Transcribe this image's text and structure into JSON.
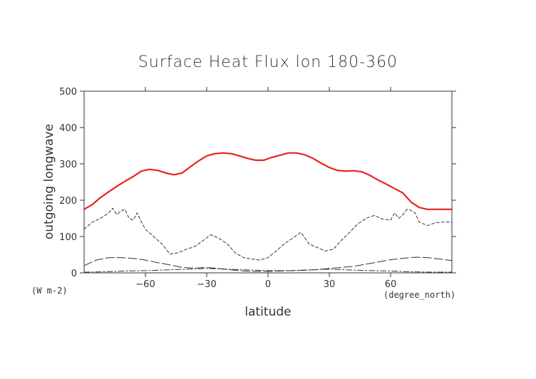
{
  "chart_data": {
    "type": "line",
    "title": "Surface Heat Flux lon 180-360",
    "xlabel": "latitude",
    "ylabel": "outgoing longwave",
    "x_unit": "(degree_north)",
    "y_unit": "(W m-2)",
    "xlim": [
      -90,
      90
    ],
    "ylim": [
      0,
      500
    ],
    "x_ticks": [
      -60,
      -30,
      0,
      30,
      60
    ],
    "y_ticks": [
      0,
      100,
      200,
      300,
      400,
      500
    ],
    "grid": false,
    "legend": "none",
    "colors": {
      "main": "#e8231f",
      "secondary": "#333333",
      "axis": "#333333"
    },
    "series": [
      {
        "style": "solid",
        "x": [
          -90,
          -86,
          -82,
          -78,
          -74,
          -70,
          -66,
          -62,
          -58,
          -54,
          -50,
          -46,
          -42,
          -38,
          -34,
          -30,
          -26,
          -22,
          -18,
          -14,
          -10,
          -6,
          -2,
          2,
          6,
          10,
          14,
          18,
          22,
          26,
          30,
          34,
          38,
          42,
          46,
          50,
          54,
          58,
          62,
          66,
          70,
          74,
          78,
          82,
          86,
          90
        ],
        "y": [
          175,
          188,
          207,
          223,
          238,
          252,
          265,
          280,
          285,
          282,
          275,
          270,
          275,
          292,
          308,
          322,
          328,
          330,
          328,
          322,
          315,
          310,
          310,
          318,
          324,
          330,
          330,
          325,
          315,
          302,
          290,
          282,
          280,
          281,
          278,
          268,
          255,
          244,
          232,
          220,
          195,
          180,
          175,
          175,
          175,
          175
        ]
      },
      {
        "style": "dashed",
        "x": [
          -90,
          -86,
          -82,
          -78,
          -76,
          -74,
          -72,
          -70,
          -68,
          -66,
          -64,
          -62,
          -60,
          -56,
          -52,
          -48,
          -44,
          -40,
          -36,
          -32,
          -28,
          -24,
          -20,
          -16,
          -12,
          -8,
          -4,
          0,
          4,
          8,
          12,
          16,
          20,
          24,
          28,
          32,
          36,
          40,
          44,
          48,
          52,
          56,
          60,
          62,
          64,
          66,
          68,
          70,
          72,
          74,
          78,
          82,
          86,
          90
        ],
        "y": [
          120,
          140,
          150,
          165,
          178,
          160,
          170,
          175,
          150,
          145,
          165,
          140,
          120,
          100,
          80,
          52,
          55,
          65,
          72,
          88,
          105,
          95,
          80,
          55,
          42,
          38,
          35,
          42,
          60,
          80,
          95,
          112,
          80,
          70,
          60,
          65,
          90,
          112,
          135,
          150,
          158,
          148,
          145,
          165,
          150,
          160,
          175,
          172,
          165,
          140,
          130,
          138,
          140,
          140
        ]
      },
      {
        "style": "long-dash",
        "x": [
          -90,
          -84,
          -78,
          -72,
          -66,
          -60,
          -54,
          -48,
          -42,
          -36,
          -30,
          -24,
          -18,
          -12,
          -6,
          0,
          6,
          12,
          18,
          24,
          30,
          36,
          42,
          48,
          54,
          60,
          66,
          72,
          78,
          84,
          90
        ],
        "y": [
          20,
          35,
          42,
          42,
          40,
          35,
          28,
          22,
          15,
          13,
          15,
          12,
          8,
          5,
          4,
          4,
          5,
          6,
          7,
          9,
          12,
          15,
          18,
          24,
          30,
          36,
          40,
          43,
          42,
          38,
          34
        ]
      },
      {
        "style": "dash-dot",
        "x": [
          -90,
          -80,
          -70,
          -60,
          -50,
          -40,
          -30,
          -20,
          -10,
          0,
          10,
          20,
          30,
          40,
          50,
          60,
          70,
          80,
          90
        ],
        "y": [
          2,
          3,
          5,
          6,
          8,
          10,
          12,
          10,
          8,
          6,
          6,
          8,
          10,
          8,
          6,
          5,
          3,
          2,
          2
        ]
      }
    ]
  }
}
